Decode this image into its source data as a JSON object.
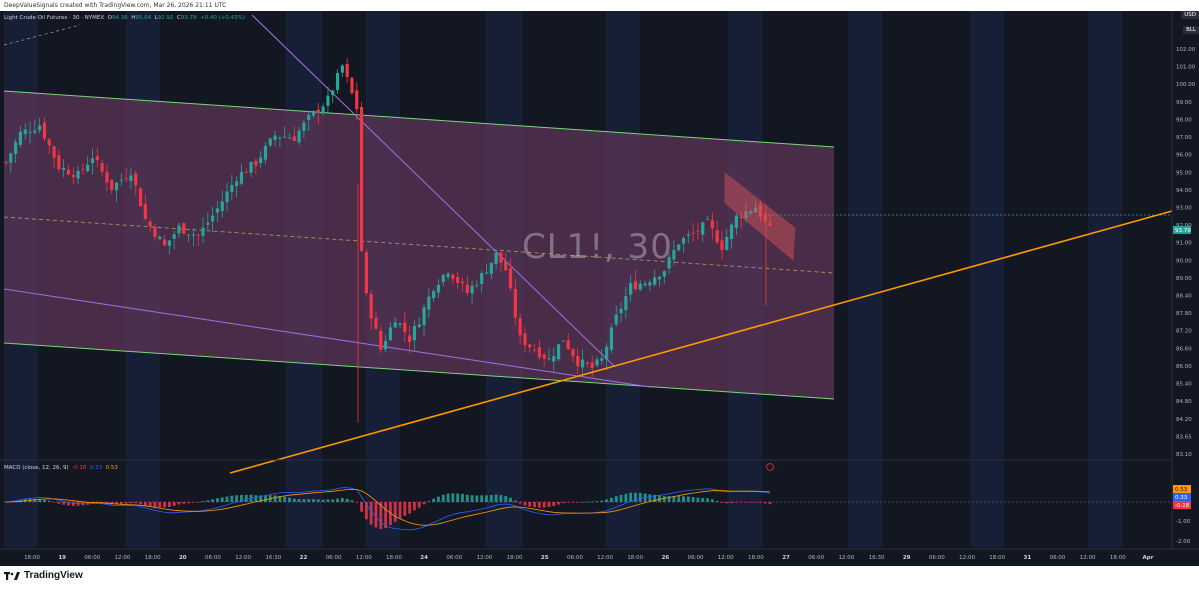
{
  "credit": "DeepValueSignals created with TradingView.com, Mar 26, 2026 21:11 UTC",
  "legend": {
    "symbol": "Light Crude Oil Futures · 30 · NYMEX",
    "o": "94.36",
    "h": "95.04",
    "l": "92.92",
    "c": "93.79",
    "change": "+0.40 (+0.43%)"
  },
  "top_tags": {
    "currency": "USD",
    "tag2": "BLL"
  },
  "watermark": "CL1!, 30",
  "macd_legend": {
    "name": "MACD (close, 12, 26, 9)",
    "hist": "-0.18",
    "macd": "0.33",
    "signal": "0.53"
  },
  "footer": {
    "brand": "TradingView"
  },
  "colors": {
    "background": "#131722",
    "session_band": "#1b2747",
    "channel_fill": "#6b3a5e",
    "channel_border": "#7cd67c",
    "up": "#26a69a",
    "down": "#f23645",
    "orange_trend": "#ff9800",
    "purple_line": "#9c6bd8",
    "flag": "#e0565b"
  },
  "chart_data": [
    {
      "type": "candlestick",
      "title": "CL1!, 30",
      "price_axis_labels": [
        "102.00",
        "101.00",
        "100.00",
        "99.00",
        "98.00",
        "97.00",
        "96.00",
        "95.00",
        "94.00",
        "93.00",
        "92.00",
        "91.00",
        "90.00",
        "89.00",
        "88.40",
        "87.80",
        "87.20",
        "86.60",
        "86.00",
        "85.40",
        "84.80",
        "84.20",
        "83.65",
        "83.10"
      ],
      "last_price": "93.79",
      "ylim": [
        83.1,
        102.8
      ],
      "time_axis_labels": [
        "18:00",
        "19",
        "06:00",
        "12:00",
        "18:00",
        "20",
        "06:00",
        "12:00",
        "16:30",
        "22",
        "06:00",
        "12:00",
        "18:00",
        "24",
        "06:00",
        "12:00",
        "18:00",
        "25",
        "06:00",
        "12:00",
        "18:00",
        "26",
        "06:00",
        "12:00",
        "18:00",
        "27",
        "06:00",
        "12:00",
        "16:30",
        "29",
        "06:00",
        "12:00",
        "18:00",
        "31",
        "06:00",
        "12:00",
        "18:00",
        "Apr"
      ],
      "path_anchors": [
        [
          0,
          97.0
        ],
        [
          3,
          98.4
        ],
        [
          7,
          98.8
        ],
        [
          11,
          96.8
        ],
        [
          15,
          96.4
        ],
        [
          18,
          97.3
        ],
        [
          22,
          95.8
        ],
        [
          26,
          96.6
        ],
        [
          29,
          94.3
        ],
        [
          33,
          93.0
        ],
        [
          36,
          93.9
        ],
        [
          40,
          93.5
        ],
        [
          44,
          94.8
        ],
        [
          48,
          96.3
        ],
        [
          52,
          97.0
        ],
        [
          56,
          98.3
        ],
        [
          60,
          98.2
        ],
        [
          63,
          99.1
        ],
        [
          67,
          100.0
        ],
        [
          70,
          101.6
        ],
        [
          73,
          99.6
        ],
        [
          74,
          92.8
        ],
        [
          75,
          90.6
        ],
        [
          78,
          88.1
        ],
        [
          81,
          89.6
        ],
        [
          84,
          88.6
        ],
        [
          86,
          89.5
        ],
        [
          89,
          91.1
        ],
        [
          92,
          91.9
        ],
        [
          96,
          90.8
        ],
        [
          99,
          91.6
        ],
        [
          102,
          92.6
        ],
        [
          104,
          91.9
        ],
        [
          107,
          88.6
        ],
        [
          110,
          88.1
        ],
        [
          113,
          87.6
        ],
        [
          116,
          88.6
        ],
        [
          119,
          87.5
        ],
        [
          122,
          87.2
        ],
        [
          124,
          87.6
        ],
        [
          127,
          89.6
        ],
        [
          130,
          91.1
        ],
        [
          133,
          91.3
        ],
        [
          137,
          91.9
        ],
        [
          140,
          93.2
        ],
        [
          143,
          93.6
        ],
        [
          146,
          94.1
        ],
        [
          149,
          93.0
        ],
        [
          152,
          94.4
        ],
        [
          156,
          94.9
        ],
        [
          159,
          93.79
        ]
      ],
      "series": [
        {
          "name": "MACD",
          "color": "#2962ff"
        },
        {
          "name": "Signal",
          "color": "#ff9800"
        }
      ]
    }
  ]
}
